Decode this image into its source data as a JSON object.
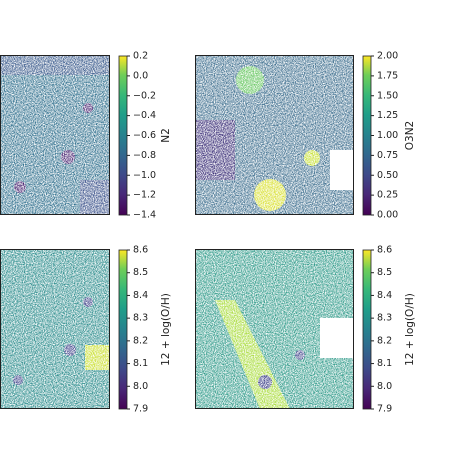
{
  "chart_data": [
    {
      "type": "heatmap",
      "colorbar_label": "N2",
      "clim": [
        -1.4,
        0.2
      ],
      "cticks": [
        {
          "value": -1.4,
          "label": "−1.4"
        },
        {
          "value": -1.2,
          "label": "−1.2"
        },
        {
          "value": -1.0,
          "label": "−1.0"
        },
        {
          "value": -0.8,
          "label": "−0.8"
        },
        {
          "value": -0.6,
          "label": "−0.6"
        },
        {
          "value": -0.4,
          "label": "−0.4"
        },
        {
          "value": -0.2,
          "label": "−0.2"
        },
        {
          "value": 0,
          "label": "0.0"
        },
        0.2
      ]
    },
    {
      "type": "heatmap",
      "colorbar_label": "O3N2",
      "clim": [
        0,
        2
      ],
      "cticks": [
        {
          "value": 0,
          "label": "0.00"
        },
        0.25,
        {
          "value": 0.5,
          "label": "0.50"
        },
        0.75,
        {
          "value": 1,
          "label": "1.00"
        },
        1.25,
        {
          "value": 1.5,
          "label": "1.50"
        },
        1.75,
        {
          "value": 2,
          "label": "2.00"
        }
      ]
    },
    {
      "type": "heatmap",
      "colorbar_label": "12 + log(O/H)",
      "clim": [
        7.9,
        8.6
      ],
      "cticks": [
        7.9,
        {
          "value": 8,
          "label": "8.0"
        },
        8.1,
        8.2,
        8.3,
        8.4,
        8.5,
        8.6
      ]
    },
    {
      "type": "heatmap",
      "colorbar_label": "12 + log(O/H)",
      "clim": [
        7.9,
        8.6
      ],
      "cticks": [
        7.9,
        {
          "value": 8,
          "label": "8.0"
        },
        8.1,
        8.2,
        8.3,
        8.4,
        8.5,
        8.6
      ]
    }
  ]
}
